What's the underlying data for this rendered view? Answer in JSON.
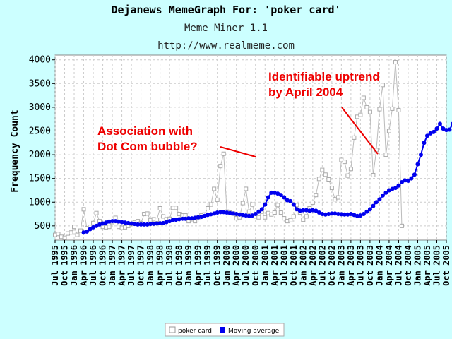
{
  "header": {
    "title": "Dejanews MemeGraph For: 'poker card'",
    "subtitle": "Meme Miner 1.1",
    "url": "http://www.realmeme.com"
  },
  "colors": {
    "background": "#ccffff",
    "raw_series": "#bbbbbb",
    "moving_average": "#0000ee",
    "annotation": "#ee0000"
  },
  "chart_data": {
    "type": "line",
    "title": "Dejanews MemeGraph For: 'poker card'",
    "xlabel": "",
    "ylabel": "Frequency Count",
    "ylim": [
      200,
      4100
    ],
    "yticks": [
      500,
      1000,
      1500,
      2000,
      2500,
      3000,
      3500,
      4000
    ],
    "xtick_labels": [
      "Jul 1995",
      "Oct 1995",
      "Jan 1996",
      "Apr 1996",
      "Jul 1996",
      "Oct 1996",
      "Jan 1997",
      "Apr 1997",
      "Jul 1997",
      "Oct 1997",
      "Jan 1998",
      "Apr 1998",
      "Jul 1998",
      "Oct 1998",
      "Jan 1999",
      "Apr 1999",
      "Jul 1999",
      "Oct 1999",
      "Jan 2000",
      "Apr 2000",
      "Jul 2000",
      "Oct 2000",
      "Jan 2001",
      "Apr 2001",
      "Jul 2001",
      "Oct 2001",
      "Jan 2002",
      "Apr 2002",
      "Jul 2002",
      "Oct 2002",
      "Jan 2003",
      "Apr 2003",
      "Jul 2003",
      "Oct 2003",
      "Jan 2004",
      "Apr 2004",
      "Jul 2004",
      "Oct 2004",
      "Jan 2005",
      "Apr 2005",
      "Jul 2005",
      "Oct 2005"
    ],
    "grid": true,
    "legend": "bottom-center",
    "series": [
      {
        "name": "poker card",
        "style": "gray-squares",
        "start": "1995-07",
        "values": [
          310,
          330,
          270,
          250,
          340,
          360,
          480,
          310,
          400,
          850,
          450,
          480,
          560,
          770,
          600,
          480,
          470,
          480,
          580,
          670,
          480,
          460,
          470,
          500,
          540,
          570,
          600,
          560,
          750,
          760,
          620,
          640,
          630,
          870,
          700,
          640,
          650,
          880,
          880,
          750,
          720,
          720,
          600,
          640,
          600,
          680,
          720,
          740,
          870,
          950,
          1280,
          1050,
          1760,
          2020,
          800,
          780,
          760,
          660,
          680,
          980,
          1280,
          800,
          950,
          700,
          680,
          800,
          680,
          770,
          740,
          780,
          940,
          780,
          660,
          600,
          620,
          700,
          940,
          780,
          630,
          700,
          870,
          990,
          1150,
          1490,
          1680,
          1580,
          1480,
          1300,
          1060,
          1100,
          1890,
          1850,
          1560,
          1700,
          2360,
          2800,
          2840,
          3200,
          3000,
          2900,
          1570,
          2100,
          2960,
          3470,
          2000,
          2500,
          2970,
          3950,
          2940,
          500
        ]
      },
      {
        "name": "Moving average",
        "style": "blue-dots",
        "start": "1996-04",
        "values": [
          360,
          380,
          430,
          470,
          500,
          530,
          550,
          570,
          590,
          600,
          600,
          590,
          580,
          570,
          560,
          550,
          540,
          530,
          530,
          530,
          530,
          540,
          545,
          550,
          555,
          560,
          580,
          600,
          620,
          630,
          640,
          650,
          650,
          660,
          660,
          670,
          680,
          690,
          710,
          730,
          745,
          760,
          780,
          790,
          790,
          780,
          770,
          760,
          750,
          740,
          730,
          720,
          710,
          720,
          750,
          800,
          850,
          950,
          1100,
          1200,
          1200,
          1180,
          1150,
          1100,
          1040,
          1020,
          950,
          850,
          820,
          830,
          830,
          820,
          830,
          820,
          780,
          750,
          740,
          750,
          760,
          760,
          750,
          745,
          740,
          740,
          750,
          730,
          710,
          720,
          750,
          800,
          850,
          920,
          1000,
          1060,
          1140,
          1200,
          1250,
          1280,
          1300,
          1350,
          1420,
          1460,
          1450,
          1500,
          1580,
          1800,
          2000,
          2250,
          2400,
          2450,
          2480,
          2550,
          2650,
          2550,
          2520,
          2530,
          2650,
          2900,
          2700
        ]
      }
    ],
    "annotations": [
      {
        "lines": [
          "Association with",
          "Dot Com bubble?"
        ],
        "points_to": "2000-09"
      },
      {
        "lines": [
          "Identifiable uptrend",
          "by April 2004"
        ],
        "points_to": "2003-12"
      }
    ]
  }
}
